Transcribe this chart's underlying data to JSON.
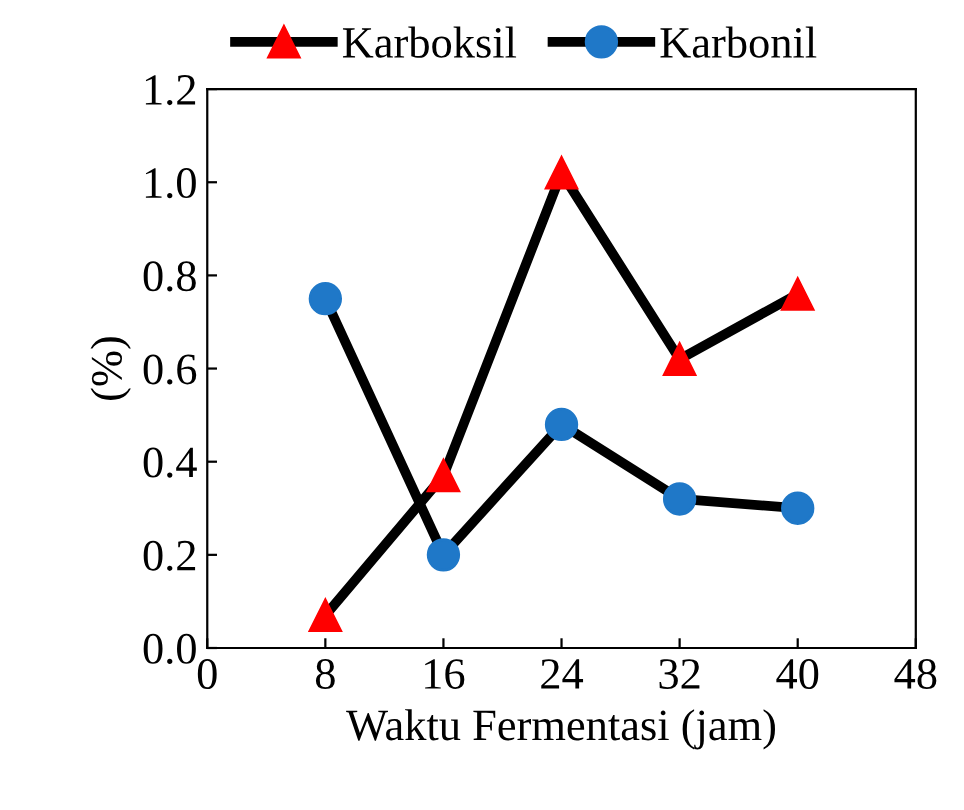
{
  "chart_data": {
    "type": "line",
    "xlabel": "Waktu Fermentasi (jam)",
    "ylabel": "(%)",
    "x": [
      8,
      16,
      24,
      32,
      40
    ],
    "series": [
      {
        "name": "Karboksil",
        "color": "#ff0000",
        "marker": "triangle",
        "values": [
          0.07,
          0.37,
          1.02,
          0.62,
          0.76
        ]
      },
      {
        "name": "Karbonil",
        "color": "#1f78c8",
        "marker": "circle",
        "values": [
          0.75,
          0.2,
          0.48,
          0.32,
          0.3
        ]
      }
    ],
    "xlim": [
      0,
      48
    ],
    "xticks": [
      0,
      8,
      16,
      24,
      32,
      40,
      48
    ],
    "ylim": [
      0,
      1.2
    ],
    "yticks": [
      {
        "value": 0,
        "label": "0.0"
      },
      {
        "value": 0.2,
        "label": "0.2"
      },
      {
        "value": 0.4,
        "label": "0.4"
      },
      {
        "value": 0.6,
        "label": "0.6"
      },
      {
        "value": 0.8,
        "label": "0.8"
      },
      {
        "value": 1.0,
        "label": "1.0"
      },
      {
        "value": 1.2,
        "label": "1.2"
      }
    ],
    "legend": "top",
    "grid": false,
    "line_style": "solid"
  }
}
